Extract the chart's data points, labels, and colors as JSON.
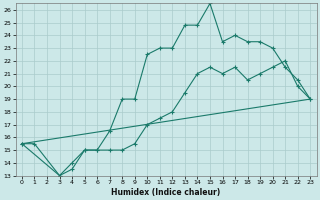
{
  "xlabel": "Humidex (Indice chaleur)",
  "background_color": "#cce8e8",
  "grid_color": "#aacccc",
  "line_color": "#1a7a6a",
  "xlim": [
    -0.5,
    23.5
  ],
  "ylim": [
    13,
    26.5
  ],
  "xticks": [
    0,
    1,
    2,
    3,
    4,
    5,
    6,
    7,
    8,
    9,
    10,
    11,
    12,
    13,
    14,
    15,
    16,
    17,
    18,
    19,
    20,
    21,
    22,
    23
  ],
  "yticks": [
    13,
    14,
    15,
    16,
    17,
    18,
    19,
    20,
    21,
    22,
    23,
    24,
    25,
    26
  ],
  "line1_x": [
    0,
    1,
    3,
    4,
    5,
    6,
    7,
    8,
    9,
    10,
    11,
    12,
    13,
    14,
    15,
    16,
    17,
    18,
    19,
    20,
    21,
    22,
    23
  ],
  "line1_y": [
    15.5,
    15.5,
    13.0,
    13.5,
    15.0,
    15.0,
    16.5,
    19.0,
    19.0,
    22.5,
    23.0,
    23.0,
    24.8,
    24.8,
    26.5,
    23.5,
    24.0,
    23.5,
    23.5,
    23.0,
    21.5,
    20.5,
    19.0
  ],
  "line2_x": [
    0,
    3,
    4,
    5,
    6,
    7,
    8,
    9,
    10,
    11,
    12,
    13,
    14,
    15,
    16,
    17,
    18,
    19,
    20,
    21,
    22,
    23
  ],
  "line2_y": [
    15.5,
    13.0,
    14.0,
    15.0,
    15.0,
    15.0,
    15.0,
    15.5,
    17.0,
    17.5,
    18.0,
    19.5,
    21.0,
    21.5,
    21.0,
    21.5,
    20.5,
    21.0,
    21.5,
    22.0,
    20.0,
    19.0
  ],
  "line3_x": [
    0,
    23
  ],
  "line3_y": [
    15.5,
    19.0
  ]
}
